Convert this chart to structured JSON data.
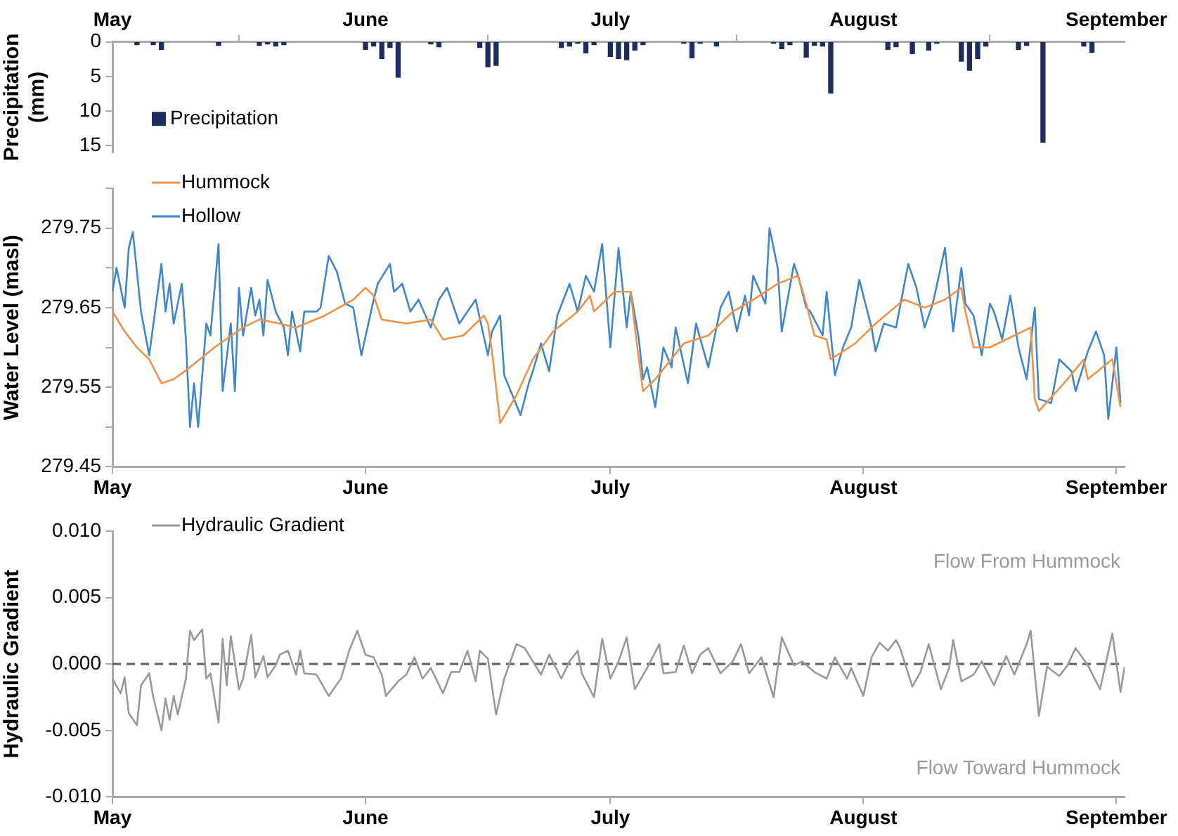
{
  "chart_data": [
    {
      "type": "bar",
      "ylabel": "Precipitation (mm)",
      "legend": "bottom left",
      "xlim": [
        "--05-01",
        "--09-02"
      ],
      "xticks": [
        {
          "value": "--05-01",
          "label": "May"
        },
        {
          "value": "--06-01",
          "label": "June"
        },
        {
          "value": "--07-01",
          "label": "July"
        },
        {
          "value": "--08-01",
          "label": "August"
        },
        {
          "value": "--09-01",
          "label": "September"
        }
      ],
      "ylim": [
        16,
        0
      ],
      "yticks": [
        0,
        5,
        10,
        15
      ],
      "series": [
        {
          "name": "Precipitation",
          "color": "#1f2d5c",
          "x": [
            "--05-04",
            "--05-06",
            "--05-07",
            "--05-14",
            "--05-19",
            "--05-20",
            "--05-21",
            "--05-22",
            "--06-01",
            "--06-02",
            "--06-03",
            "--06-04",
            "--06-05",
            "--06-09",
            "--06-10",
            "--06-15",
            "--06-16",
            "--06-17",
            "--06-25",
            "--06-26",
            "--06-27",
            "--06-28",
            "--06-29",
            "--07-01",
            "--07-02",
            "--07-03",
            "--07-04",
            "--07-05",
            "--07-10",
            "--07-11",
            "--07-12",
            "--07-14",
            "--07-21",
            "--07-22",
            "--07-23",
            "--07-25",
            "--07-26",
            "--07-27",
            "--07-28",
            "--08-04",
            "--08-05",
            "--08-07",
            "--08-09",
            "--08-10",
            "--08-13",
            "--08-14",
            "--08-15",
            "--08-16",
            "--08-20",
            "--08-21",
            "--08-23",
            "--08-28",
            "--08-29"
          ],
          "values": [
            0.4,
            0.4,
            1.1,
            0.5,
            0.5,
            0.3,
            0.6,
            0.4,
            1.1,
            0.6,
            2.4,
            0.8,
            5.1,
            0.3,
            0.7,
            0.8,
            3.6,
            3.4,
            0.8,
            0.6,
            0.2,
            1.6,
            0.4,
            2.1,
            2.4,
            2.6,
            1.2,
            0.4,
            0.2,
            2.3,
            0.2,
            0.6,
            0.2,
            1.0,
            0.4,
            2.2,
            0.5,
            0.6,
            7.4,
            1.1,
            0.7,
            1.7,
            1.2,
            0.2,
            2.8,
            4.1,
            2.4,
            0.6,
            1.1,
            0.5,
            14.5,
            0.6,
            1.5
          ]
        }
      ]
    },
    {
      "type": "line",
      "ylabel": "Water Level (masl)",
      "legend": "top left",
      "marker": "none",
      "line_style": "solid",
      "xlim": [
        "--05-01",
        "--09-02"
      ],
      "xticks": [
        {
          "value": "--05-01",
          "label": "May"
        },
        {
          "value": "--06-01",
          "label": "June"
        },
        {
          "value": "--07-01",
          "label": "July"
        },
        {
          "value": "--08-01",
          "label": "August"
        },
        {
          "value": "--09-01",
          "label": "September"
        }
      ],
      "ylim": [
        279.45,
        279.8
      ],
      "yticks": [
        279.45,
        {
          "value": 279.5,
          "label": null
        },
        279.55,
        {
          "value": 279.6,
          "label": null
        },
        279.65,
        {
          "value": 279.7,
          "label": null
        },
        279.75,
        {
          "value": 279.8,
          "label": null
        }
      ],
      "series": [
        {
          "name": "Hummock",
          "color": "#f0914a",
          "x": [
            "--05-01",
            "--05-02T12:00",
            "--05-04",
            "--05-05T12:00",
            "--05-07",
            "--05-08T12:00",
            "--05-10T12:00",
            "--05-13T12:00",
            "--05-17",
            "--05-19",
            "--05-21T12:00",
            "--05-23T12:00",
            "--05-27",
            "--05-30T12:00",
            "--06-01",
            "--06-02",
            "--06-03",
            "--06-06",
            "--06-09",
            "--06-10T12:00",
            "--06-13",
            "--06-15T12:00",
            "--06-16",
            "--06-16T12:00",
            "--06-17T12:00",
            "--06-19T12:00",
            "--06-21T12:00",
            "--06-24",
            "--06-27",
            "--06-28T12:00",
            "--06-29",
            "--07-01T12:00",
            "--07-03T12:00",
            "--07-04",
            "--07-05",
            "--07-06T12:00",
            "--07-10",
            "--07-13",
            "--07-16",
            "--07-18T12:00",
            "--07-21T12:00",
            "--07-24",
            "--07-25",
            "--07-26",
            "--07-27T12:00",
            "--07-28",
            "--07-31",
            "--08-02T12:00",
            "--08-06",
            "--08-08T12:00",
            "--08-11",
            "--08-13",
            "--08-13T12:00",
            "--08-14T12:00",
            "--08-16T12:00",
            "--08-19T12:00",
            "--08-21T12:00",
            "--08-22",
            "--08-22T12:00",
            "--08-26",
            "--08-28",
            "--08-28T12:00",
            "--08-31T12:00",
            "--09-01T12:00"
          ],
          "values": [
            279.645,
            279.62,
            279.6,
            279.585,
            279.555,
            279.56,
            279.575,
            279.6,
            279.625,
            279.635,
            279.63,
            279.625,
            279.64,
            279.66,
            279.675,
            279.665,
            279.635,
            279.63,
            279.635,
            279.61,
            279.615,
            279.64,
            279.63,
            279.595,
            279.505,
            279.54,
            279.585,
            279.62,
            279.645,
            279.665,
            279.645,
            279.67,
            279.67,
            279.625,
            279.545,
            279.56,
            279.605,
            279.615,
            279.645,
            279.66,
            279.68,
            279.69,
            279.655,
            279.615,
            279.61,
            279.585,
            279.605,
            279.63,
            279.66,
            279.65,
            279.66,
            279.675,
            279.645,
            279.6,
            279.6,
            279.615,
            279.625,
            279.535,
            279.52,
            279.56,
            279.585,
            279.56,
            279.585,
            279.525
          ]
        },
        {
          "name": "Hollow",
          "color": "#3f87c8",
          "x": [
            "--05-01",
            "--05-01T12:00",
            "--05-02T12:00",
            "--05-03",
            "--05-03T12:00",
            "--05-04T12:00",
            "--05-05T12:00",
            "--05-07",
            "--05-07T12:00",
            "--05-08",
            "--05-08T12:00",
            "--05-09T12:00",
            "--05-10",
            "--05-10T12:00",
            "--05-11",
            "--05-11T12:00",
            "--05-12T12:00",
            "--05-13",
            "--05-14",
            "--05-14T12:00",
            "--05-15T12:00",
            "--05-16",
            "--05-16T12:00",
            "--05-17",
            "--05-18",
            "--05-18T12:00",
            "--05-19",
            "--05-19T12:00",
            "--05-20",
            "--05-21",
            "--05-22",
            "--05-22T12:00",
            "--05-23",
            "--05-24",
            "--05-24T12:00",
            "--05-26",
            "--05-26T12:00",
            "--05-27T12:00",
            "--05-28T12:00",
            "--05-29T12:00",
            "--05-30T12:00",
            "--05-31T12:00",
            "--06-02",
            "--06-02T12:00",
            "--06-04",
            "--06-04T12:00",
            "--06-05T12:00",
            "--06-06T12:00",
            "--06-07T12:00",
            "--06-09",
            "--06-10",
            "--06-11",
            "--06-12T12:00",
            "--06-13T12:00",
            "--06-14T12:00",
            "--06-16",
            "--06-16T12:00",
            "--06-17T12:00",
            "--06-18",
            "--06-20",
            "--06-21",
            "--06-21T12:00",
            "--06-22T12:00",
            "--06-23T12:00",
            "--06-24T12:00",
            "--06-26",
            "--06-27",
            "--06-28",
            "--06-29",
            "--06-30",
            "--07-01",
            "--07-02",
            "--07-03",
            "--07-03T12:00",
            "--07-04T12:00",
            "--07-05",
            "--07-05T12:00",
            "--07-06T12:00",
            "--07-07T12:00",
            "--07-08T12:00",
            "--07-09",
            "--07-10T12:00",
            "--07-11T12:00",
            "--07-13",
            "--07-14T12:00",
            "--07-15T12:00",
            "--07-16T12:00",
            "--07-17T12:00",
            "--07-18",
            "--07-18T12:00",
            "--07-20",
            "--07-20T12:00",
            "--07-21T12:00",
            "--07-22",
            "--07-23T12:00",
            "--07-24",
            "--07-25",
            "--07-25T12:00",
            "--07-27",
            "--07-27T12:00",
            "--07-28T12:00",
            "--07-29T12:00",
            "--07-30T12:00",
            "--07-31",
            "--07-31T12:00",
            "--08-02",
            "--08-02T12:00",
            "--08-03T12:00",
            "--08-05",
            "--08-06T12:00",
            "--08-07T12:00",
            "--08-08T12:00",
            "--08-09T12:00",
            "--08-11",
            "--08-12",
            "--08-13",
            "--08-13T12:00",
            "--08-14T12:00",
            "--08-15T12:00",
            "--08-16T12:00",
            "--08-17",
            "--08-18",
            "--08-19",
            "--08-20",
            "--08-21",
            "--08-22",
            "--08-22T12:00",
            "--08-24",
            "--08-25",
            "--08-26T12:00",
            "--08-27",
            "--08-28T12:00",
            "--08-29T12:00",
            "--08-30T12:00",
            "--08-31",
            "--09-01",
            "--09-01T12:00"
          ],
          "values": [
            279.67,
            279.7,
            279.65,
            279.725,
            279.745,
            279.645,
            279.59,
            279.705,
            279.645,
            279.68,
            279.63,
            279.68,
            279.61,
            279.5,
            279.555,
            279.5,
            279.63,
            279.615,
            279.73,
            279.545,
            279.63,
            279.545,
            279.675,
            279.615,
            279.675,
            279.64,
            279.66,
            279.615,
            279.685,
            279.645,
            279.625,
            279.59,
            279.645,
            279.595,
            279.645,
            279.645,
            279.65,
            279.715,
            279.695,
            279.655,
            279.65,
            279.59,
            279.66,
            279.68,
            279.705,
            279.67,
            279.68,
            279.645,
            279.66,
            279.625,
            279.66,
            279.675,
            279.63,
            279.645,
            279.66,
            279.59,
            279.62,
            279.64,
            279.565,
            279.515,
            279.555,
            279.57,
            279.605,
            279.57,
            279.64,
            279.68,
            279.645,
            279.69,
            279.67,
            279.73,
            279.6,
            279.725,
            279.625,
            279.67,
            279.61,
            279.56,
            279.575,
            279.525,
            279.6,
            279.575,
            279.625,
            279.555,
            279.63,
            279.575,
            279.65,
            279.67,
            279.62,
            279.665,
            279.64,
            279.69,
            279.655,
            279.75,
            279.7,
            279.62,
            279.705,
            279.69,
            279.65,
            279.645,
            279.615,
            279.67,
            279.565,
            279.6,
            279.625,
            279.655,
            279.685,
            279.625,
            279.595,
            279.63,
            279.625,
            279.705,
            279.675,
            279.625,
            279.655,
            279.725,
            279.62,
            279.7,
            279.655,
            279.64,
            279.59,
            279.655,
            279.645,
            279.61,
            279.665,
            279.6,
            279.56,
            279.65,
            279.535,
            279.53,
            279.585,
            279.57,
            279.545,
            279.595,
            279.62,
            279.59,
            279.51,
            279.6,
            279.53
          ]
        }
      ]
    },
    {
      "type": "line",
      "ylabel": "Hydraulic Gradient",
      "legend": "top left",
      "marker": "none",
      "line_style": "solid",
      "annotations": [
        "Flow From Hummock",
        "Flow Toward Hummock"
      ],
      "ref_lines": [
        {
          "axis": "y",
          "value": 0,
          "color": "#666666",
          "line_style": "dashed"
        }
      ],
      "xlim": [
        "--05-01",
        "--09-02"
      ],
      "xticks": [
        {
          "value": "--05-01",
          "label": "May"
        },
        {
          "value": "--06-01",
          "label": "June"
        },
        {
          "value": "--07-01",
          "label": "July"
        },
        {
          "value": "--08-01",
          "label": "August"
        },
        {
          "value": "--09-01",
          "label": "September"
        }
      ],
      "ylim": [
        -0.01,
        0.01
      ],
      "yticks": [
        {
          "value": -0.01,
          "label": "-0.010"
        },
        {
          "value": -0.005,
          "label": "-0.005"
        },
        {
          "value": 0,
          "label": "0.000"
        },
        {
          "value": 0.005,
          "label": "0.005"
        },
        {
          "value": 0.01,
          "label": "0.010"
        }
      ],
      "series": [
        {
          "name": "Hydraulic Gradient",
          "color": "#999999",
          "x": [
            "--05-01",
            "--05-02",
            "--05-02T12:00",
            "--05-03",
            "--05-04",
            "--05-04T12:00",
            "--05-05T12:00",
            "--05-06",
            "--05-07",
            "--05-07T12:00",
            "--05-08",
            "--05-08T12:00",
            "--05-09",
            "--05-10",
            "--05-10T12:00",
            "--05-11",
            "--05-12",
            "--05-12T12:00",
            "--05-13",
            "--05-14",
            "--05-14T12:00",
            "--05-15",
            "--05-15T12:00",
            "--05-16T12:00",
            "--05-17",
            "--05-18",
            "--05-18T12:00",
            "--05-19T12:00",
            "--05-20",
            "--05-21",
            "--05-21T12:00",
            "--05-22T12:00",
            "--05-23T12:00",
            "--05-24",
            "--05-24T12:00",
            "--05-26",
            "--05-27T12:00",
            "--05-29",
            "--05-30",
            "--05-31",
            "--06-01",
            "--06-02",
            "--06-03",
            "--06-03T12:00",
            "--06-05",
            "--06-06",
            "--06-07",
            "--06-08",
            "--06-09",
            "--06-10T12:00",
            "--06-11T12:00",
            "--06-12T12:00",
            "--06-13T12:00",
            "--06-14T12:00",
            "--06-15",
            "--06-16",
            "--06-17",
            "--06-18",
            "--06-19T12:00",
            "--06-20T12:00",
            "--06-22T12:00",
            "--06-23T12:00",
            "--06-25",
            "--06-26",
            "--06-27",
            "--06-27T12:00",
            "--06-29",
            "--06-30",
            "--07-01",
            "--07-02",
            "--07-03",
            "--07-04",
            "--07-05T12:00",
            "--07-07",
            "--07-07T12:00",
            "--07-09",
            "--07-10",
            "--07-11",
            "--07-12",
            "--07-13",
            "--07-14T12:00",
            "--07-16",
            "--07-17",
            "--07-18",
            "--07-19T12:00",
            "--07-21",
            "--07-22",
            "--07-23T12:00",
            "--07-24T12:00",
            "--07-26",
            "--07-27T12:00",
            "--07-28T12:00",
            "--07-30",
            "--07-30T12:00",
            "--08-01",
            "--08-02",
            "--08-03",
            "--08-04",
            "--08-05",
            "--08-05T12:00",
            "--08-07",
            "--08-08",
            "--08-09",
            "--08-10T12:00",
            "--08-11T12:00",
            "--08-12",
            "--08-13",
            "--08-14T12:00",
            "--08-15T12:00",
            "--08-17",
            "--08-18T12:00",
            "--08-19T12:00",
            "--08-21",
            "--08-21T12:00",
            "--08-22T12:00",
            "--08-23T12:00",
            "--08-25",
            "--08-26",
            "--08-27",
            "--08-28T12:00",
            "--08-30",
            "--08-31T12:00",
            "--09-01T12:00",
            "--09-02"
          ],
          "values": [
            -0.0011,
            -0.0022,
            -0.001,
            -0.0037,
            -0.0046,
            -0.0016,
            -0.0007,
            -0.0025,
            -0.005,
            -0.0026,
            -0.0042,
            -0.0024,
            -0.0038,
            -0.0011,
            0.0025,
            0.0018,
            0.0026,
            -0.0011,
            -0.0007,
            -0.0044,
            0.0019,
            -0.0016,
            0.0021,
            -0.0019,
            -0.0011,
            0.0022,
            -0.001,
            0.0006,
            -0.001,
            -0.0001,
            0.0007,
            0.001,
            -0.0008,
            0.001,
            -0.0007,
            -0.0008,
            -0.0024,
            -0.0011,
            0.001,
            0.0025,
            0.0007,
            0.0005,
            -0.0008,
            -0.0024,
            -0.0013,
            -0.0008,
            0.0005,
            -0.0011,
            -0.0003,
            -0.0022,
            -0.0006,
            -0.0006,
            0.001,
            -0.0013,
            0.001,
            0.0004,
            -0.0038,
            -0.0011,
            0.0015,
            0.0012,
            -0.0008,
            0.0007,
            -0.0011,
            0.0002,
            0.001,
            -0.0007,
            -0.0025,
            0.0019,
            -0.0011,
            0.0002,
            0.002,
            -0.0019,
            -0.0003,
            0.0015,
            -0.0007,
            -0.0006,
            0.0014,
            -0.0007,
            0.0007,
            0.0012,
            -0.0007,
            0.0002,
            0.0015,
            -0.0007,
            0.0005,
            -0.0025,
            0.002,
            -0.0001,
            0.0002,
            -0.0006,
            -0.0011,
            0.0005,
            -0.0011,
            -0.0003,
            -0.0024,
            0.0005,
            0.0016,
            0.001,
            0.0018,
            0.0012,
            -0.0017,
            -0.0006,
            0.0015,
            -0.0019,
            -0.0003,
            0.0018,
            -0.0013,
            -0.0008,
            0.0002,
            -0.0016,
            0.0006,
            -0.0008,
            0.0015,
            0.0025,
            -0.0039,
            -0.0002,
            -0.0009,
            -0.0001,
            0.0012,
            -0.0001,
            -0.0019,
            0.0023,
            -0.0021,
            -0.0002
          ]
        }
      ]
    }
  ]
}
